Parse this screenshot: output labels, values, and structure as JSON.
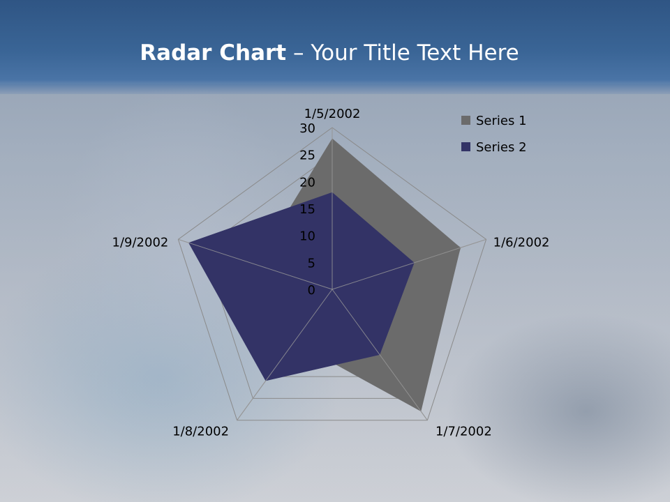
{
  "slide": {
    "title_bold": "Radar Chart",
    "title_rest": " – Your Title Text Here"
  },
  "chart_data": {
    "type": "radar",
    "categories": [
      "1/5/2002",
      "1/6/2002",
      "1/7/2002",
      "1/8/2002",
      "1/9/2002"
    ],
    "series": [
      {
        "name": "Series 1",
        "values": [
          28,
          25,
          28,
          12,
          15
        ],
        "color": "#6b6b6b"
      },
      {
        "name": "Series 2",
        "values": [
          18,
          16,
          15,
          21,
          28
        ],
        "color": "#333366"
      }
    ],
    "axis_ticks": [
      "0",
      "5",
      "10",
      "15",
      "20",
      "25",
      "30"
    ],
    "rlim": [
      0,
      30
    ],
    "grid": true,
    "legend": "top-right"
  }
}
